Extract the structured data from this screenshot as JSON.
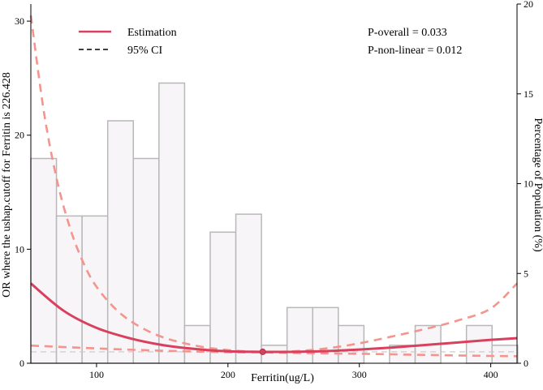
{
  "chart_data": {
    "type": "line",
    "xlabel": "Ferritin(ug/L)",
    "ylabel_left": "OR where the ushap.cutoff for Ferritin is 226.428",
    "ylabel_right": "Percentage of Population (%)",
    "xlim": [
      50,
      420
    ],
    "ylim_left": [
      0,
      31.5
    ],
    "ylim_right": [
      0,
      20
    ],
    "x_ticks": [
      100,
      200,
      300,
      400
    ],
    "y_ticks_left": [
      0,
      10,
      20,
      30
    ],
    "y_ticks_right": [
      0,
      5,
      10,
      15,
      20
    ],
    "grid": false,
    "legend_position": "top-left",
    "legend": [
      {
        "label": "Estimation",
        "style": "solid",
        "color": "#d9405e"
      },
      {
        "label": "95% CI",
        "style": "dashed",
        "color": "#000000"
      }
    ],
    "annotations": [
      "P-overall = 0.033",
      "P-non-linear = 0.012"
    ],
    "reference_point": {
      "x": 226.428,
      "y": 1.0
    },
    "reference_line_y": 1.0,
    "histogram": {
      "bin_width": 19.5,
      "bins": [
        {
          "x0": 50,
          "pct": 11.4
        },
        {
          "x0": 69.5,
          "pct": 8.2
        },
        {
          "x0": 89,
          "pct": 8.2
        },
        {
          "x0": 108.5,
          "pct": 13.5
        },
        {
          "x0": 128,
          "pct": 11.4
        },
        {
          "x0": 147.5,
          "pct": 15.6
        },
        {
          "x0": 167,
          "pct": 2.1
        },
        {
          "x0": 186.5,
          "pct": 7.3
        },
        {
          "x0": 206,
          "pct": 8.3
        },
        {
          "x0": 225.5,
          "pct": 1.0
        },
        {
          "x0": 245,
          "pct": 3.1
        },
        {
          "x0": 264.5,
          "pct": 3.1
        },
        {
          "x0": 284,
          "pct": 2.1
        },
        {
          "x0": 303.5,
          "pct": 0
        },
        {
          "x0": 323,
          "pct": 1.0
        },
        {
          "x0": 342.5,
          "pct": 2.1
        },
        {
          "x0": 362,
          "pct": 0
        },
        {
          "x0": 381.5,
          "pct": 2.1
        },
        {
          "x0": 401,
          "pct": 1.0
        }
      ]
    },
    "series": [
      {
        "name": "Estimation",
        "style": "solid",
        "color": "#d9405e",
        "x": [
          50,
          75,
          100,
          125,
          150,
          175,
          200,
          226.428,
          250,
          275,
          300,
          325,
          350,
          375,
          400,
          420
        ],
        "y": [
          7.0,
          4.6,
          3.1,
          2.2,
          1.6,
          1.25,
          1.05,
          1.0,
          1.0,
          1.07,
          1.2,
          1.38,
          1.6,
          1.82,
          2.05,
          2.2
        ]
      },
      {
        "name": "95% CI upper",
        "style": "dashed",
        "color": "#f4948c",
        "x": [
          50,
          60,
          70,
          80,
          90,
          100,
          115,
          130,
          150,
          175,
          200,
          226.428,
          250,
          275,
          300,
          325,
          350,
          375,
          400,
          420
        ],
        "y": [
          30.5,
          22.0,
          16.0,
          11.8,
          8.8,
          6.7,
          4.7,
          3.4,
          2.3,
          1.55,
          1.15,
          1.0,
          1.05,
          1.3,
          1.75,
          2.35,
          3.0,
          3.75,
          4.8,
          7.0
        ]
      },
      {
        "name": "95% CI lower",
        "style": "dashed",
        "color": "#f4948c",
        "x": [
          50,
          100,
          150,
          200,
          226.428,
          250,
          300,
          350,
          400,
          420
        ],
        "y": [
          1.55,
          1.3,
          1.1,
          0.97,
          0.95,
          0.9,
          0.83,
          0.73,
          0.64,
          0.62
        ]
      }
    ]
  }
}
